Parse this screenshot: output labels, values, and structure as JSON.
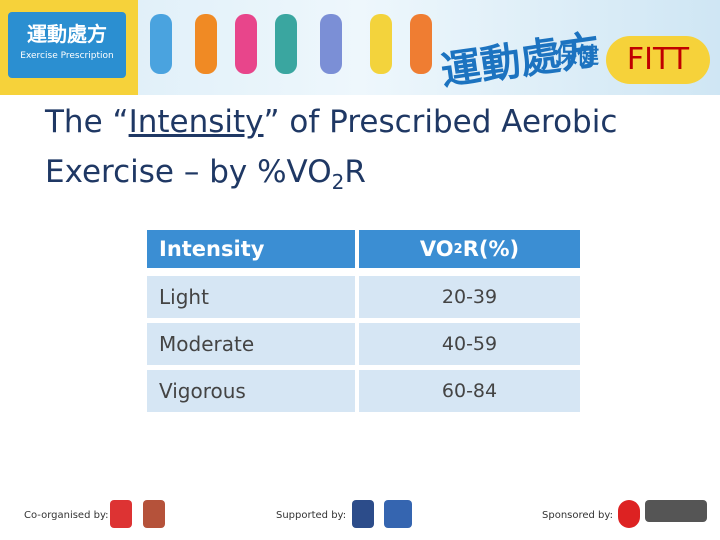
{
  "header": {
    "logo_title": "運動處方",
    "logo_subtitle": "Exercise Prescription",
    "banner_title": "運動處方",
    "banner_tag": "保健",
    "badge": "FITT"
  },
  "title": {
    "part1": "The “",
    "underlined": "Intensity",
    "part2": "” of Prescribed Aerobic",
    "line2": "Exercise – by %VO",
    "sub": "2",
    "end": "R"
  },
  "table": {
    "header": [
      {
        "text": "Intensity"
      },
      {
        "text": "VO",
        "sub": "2",
        "end": "R(%)"
      }
    ],
    "rows": [
      [
        "Light",
        "20-39"
      ],
      [
        "Moderate",
        "40-59"
      ],
      [
        "Vigorous",
        "60-84"
      ]
    ]
  },
  "footer": {
    "co_organised": "Co-organised by:",
    "supported": "Supported by:",
    "sponsored": "Sponsored by:"
  }
}
